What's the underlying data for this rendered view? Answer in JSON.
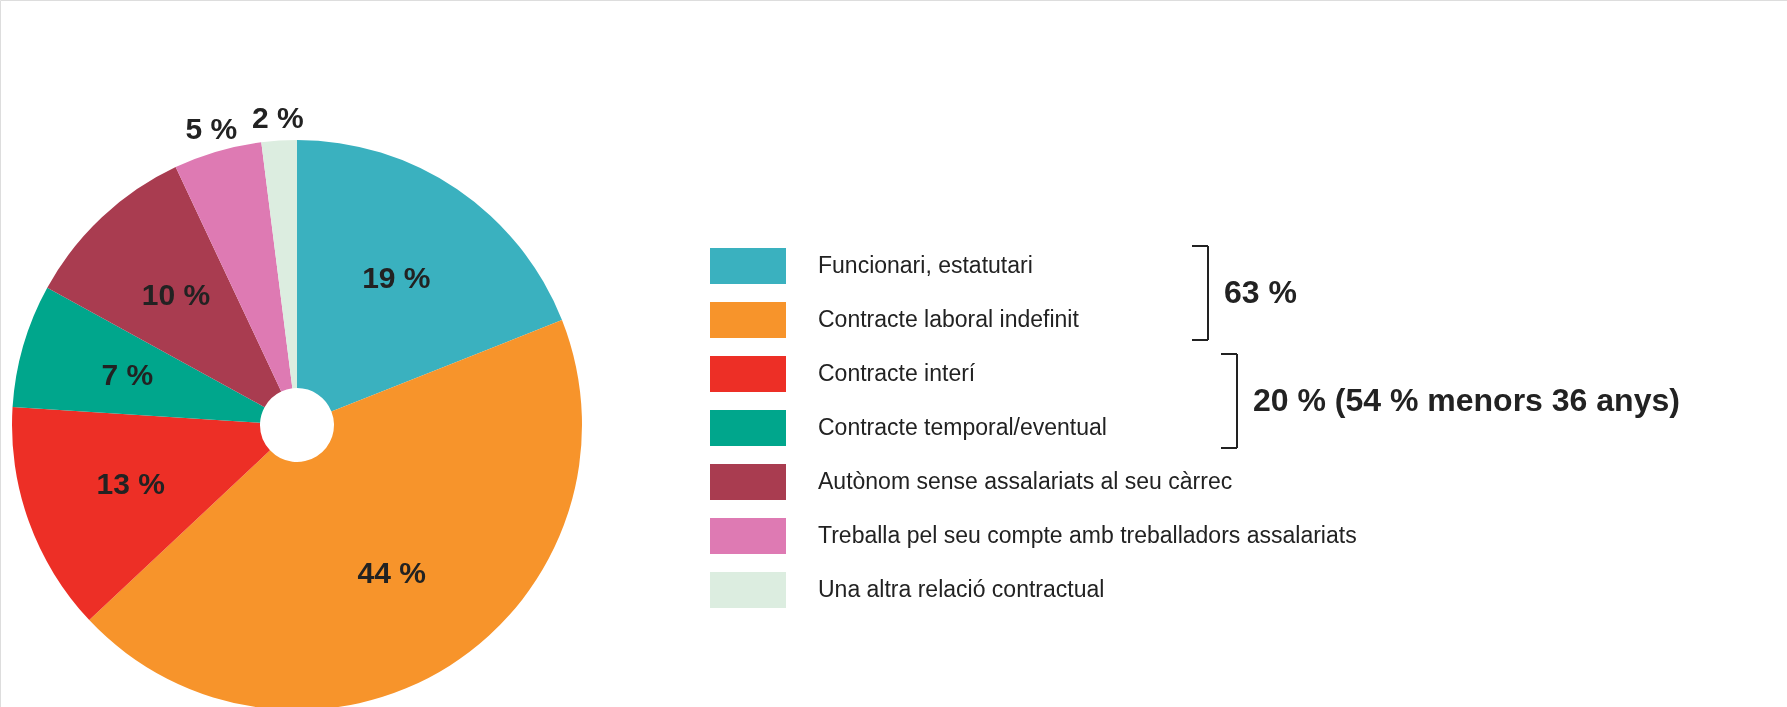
{
  "chart_data": {
    "type": "donut",
    "categories": [
      "Funcionari, estatutari",
      "Contracte laboral indefinit",
      "Contracte interí",
      "Contracte temporal/eventual",
      "Autònom sense assalariats al seu càrrec",
      "Treballa pel seu compte amb treballadors assalariats",
      "Una altra relació contractual"
    ],
    "values": [
      19,
      44,
      13,
      7,
      10,
      5,
      2
    ],
    "colors": [
      "#3ab1bf",
      "#f7942b",
      "#ed2f26",
      "#00a68c",
      "#a93c50",
      "#de7ab3",
      "#dcede0"
    ],
    "value_labels": [
      "19 %",
      "44 %",
      "13 %",
      "7 %",
      "10 %",
      "5 %",
      "2 %"
    ],
    "legend": "right",
    "annotations": [
      "63 %",
      "20 %  (54 % menors 36 anys)"
    ]
  }
}
